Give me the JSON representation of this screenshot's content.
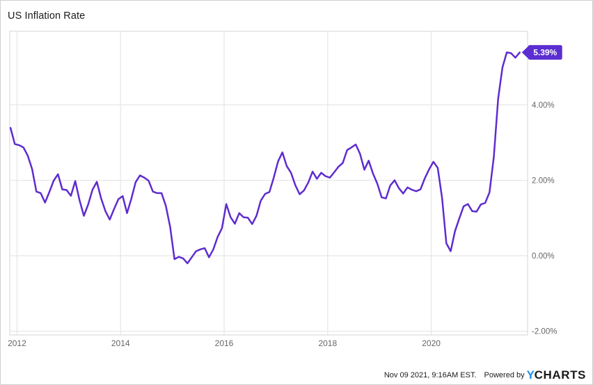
{
  "page": {
    "title": "US Inflation Rate"
  },
  "footer": {
    "timestamp": "Nov 09 2021, 9:16AM EST.",
    "powered_by": "Powered by",
    "logo_y": "Y",
    "logo_rest": "CHARTS"
  },
  "colors": {
    "line": "#5e2ccf",
    "badge_bg": "#5b2ed1",
    "badge_text": "#ffffff",
    "gridline": "#e2e2e2",
    "plot_border": "#d5d5d5",
    "axis_text": "#666666",
    "logo_blue": "#1e8ceb",
    "logo_dark": "#1a1a1a"
  },
  "chart_data": {
    "type": "line",
    "title": "US Inflation Rate",
    "ylabel": "",
    "xlabel": "",
    "unit": "%",
    "frequency": "monthly",
    "start_date": "2011-11",
    "end_date": "2021-09",
    "x_range_years": [
      2011.86,
      2021.86
    ],
    "y_range": [
      -2.1,
      5.95
    ],
    "grid": true,
    "legend": "none",
    "x_ticks": [
      {
        "t": 2012,
        "label": "2012"
      },
      {
        "t": 2014,
        "label": "2014"
      },
      {
        "t": 2016,
        "label": "2016"
      },
      {
        "t": 2018,
        "label": "2018"
      },
      {
        "t": 2020,
        "label": "2020"
      }
    ],
    "y_ticks": [
      {
        "v": 4,
        "label": "4.00%"
      },
      {
        "v": 2,
        "label": "2.00%"
      },
      {
        "v": 0,
        "label": "0.00%"
      },
      {
        "v": -2,
        "label": "-2.00%"
      }
    ],
    "latest": {
      "date": "2021-09",
      "value": 5.39,
      "label": "5.39%"
    },
    "series": [
      {
        "name": "US Inflation Rate",
        "values": [
          3.39,
          2.96,
          2.93,
          2.87,
          2.65,
          2.3,
          1.7,
          1.66,
          1.41,
          1.69,
          1.99,
          2.16,
          1.76,
          1.74,
          1.59,
          1.98,
          1.47,
          1.06,
          1.36,
          1.75,
          1.96,
          1.52,
          1.18,
          0.96,
          1.24,
          1.5,
          1.58,
          1.13,
          1.51,
          1.95,
          2.13,
          2.07,
          1.99,
          1.7,
          1.66,
          1.66,
          1.32,
          0.76,
          -0.09,
          -0.03,
          -0.07,
          -0.2,
          -0.04,
          0.12,
          0.17,
          0.2,
          -0.04,
          0.17,
          0.5,
          0.73,
          1.37,
          1.02,
          0.85,
          1.13,
          1.02,
          1.01,
          0.84,
          1.06,
          1.46,
          1.64,
          1.69,
          2.07,
          2.5,
          2.74,
          2.38,
          2.2,
          1.87,
          1.63,
          1.73,
          1.94,
          2.23,
          2.04,
          2.2,
          2.11,
          2.07,
          2.21,
          2.36,
          2.46,
          2.8,
          2.87,
          2.95,
          2.7,
          2.28,
          2.52,
          2.18,
          1.91,
          1.55,
          1.52,
          1.86,
          2.0,
          1.79,
          1.65,
          1.81,
          1.75,
          1.71,
          1.76,
          2.05,
          2.29,
          2.49,
          2.33,
          1.54,
          0.33,
          0.12,
          0.65,
          0.99,
          1.31,
          1.37,
          1.18,
          1.17,
          1.36,
          1.4,
          1.68,
          2.62,
          4.16,
          4.99,
          5.39,
          5.37,
          5.25,
          5.39
        ]
      }
    ]
  }
}
